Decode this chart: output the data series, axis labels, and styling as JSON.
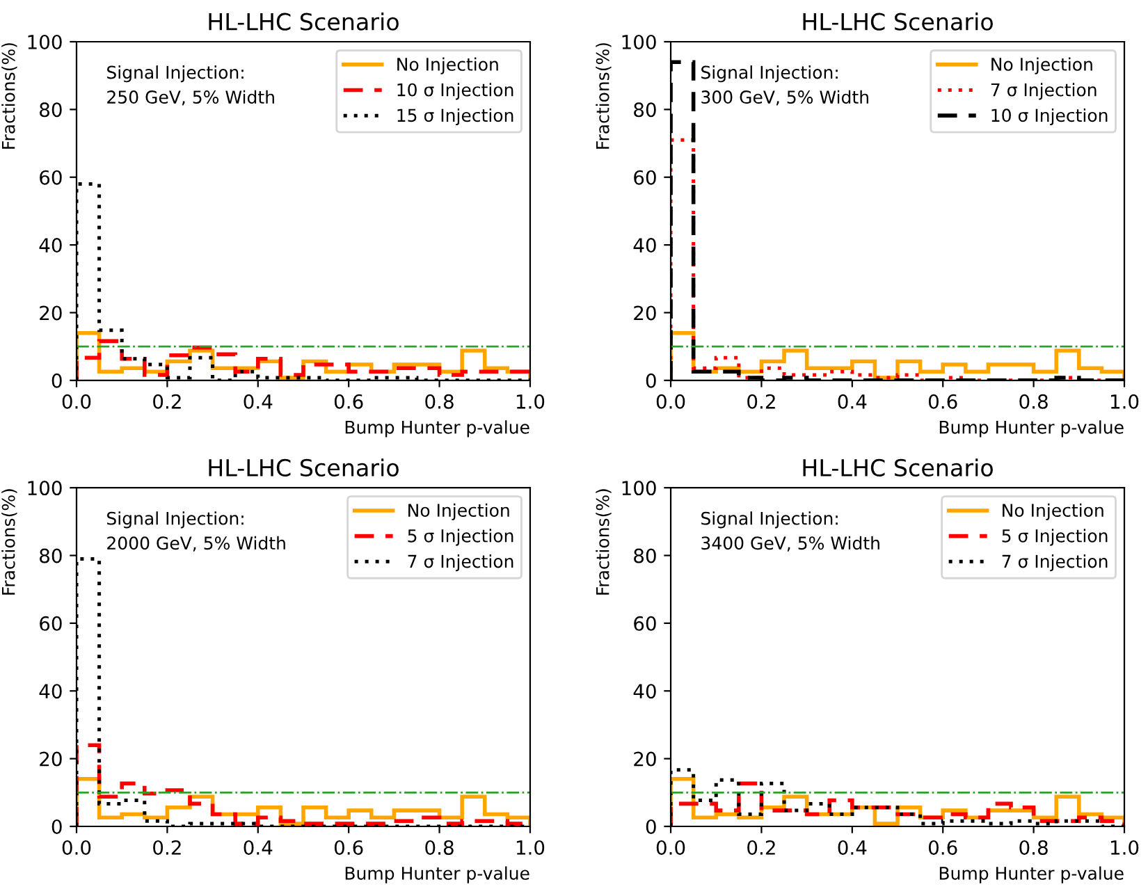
{
  "chart_data": [
    {
      "type": "histogram",
      "title": "HL-LHC Scenario",
      "xlabel": "Bump Hunter p-value",
      "ylabel": "Fractions(%)",
      "annotations": [
        "Signal Injection:\n250 GeV, 5% Width"
      ],
      "bins": [
        0,
        0.05,
        0.1,
        0.15,
        0.2,
        0.25,
        0.3,
        0.35,
        0.4,
        0.45,
        0.5,
        0.55,
        0.6,
        0.65,
        0.7,
        0.75,
        0.8,
        0.85,
        0.9,
        0.95,
        1.0
      ],
      "series": [
        {
          "name": "No Injection",
          "color": "#ffa500",
          "line_style": "solid",
          "values": [
            14,
            2.6,
            3.6,
            2.6,
            5.6,
            8.8,
            3.6,
            3.6,
            5.6,
            0.8,
            5.6,
            2.6,
            4.7,
            2.6,
            4.7,
            4.7,
            2.6,
            8.8,
            3.6,
            2.6
          ]
        },
        {
          "name": "10 σ Injection",
          "color": "#ff0000",
          "line_style": "dashed",
          "values": [
            6.7,
            11.6,
            6.4,
            1.6,
            7.4,
            9.7,
            7.7,
            2.6,
            6.4,
            1.6,
            4.7,
            4.7,
            2.6,
            2.6,
            3.6,
            3.6,
            1.6,
            2.6,
            2.6,
            2.6
          ]
        },
        {
          "name": "15 σ Injection",
          "color": "#000000",
          "line_style": "dotted",
          "values": [
            58,
            14.8,
            6.4,
            4.7,
            0.8,
            6.7,
            0,
            2.6,
            0.8,
            0.8,
            0.8,
            0,
            0,
            0.8,
            0.8,
            0,
            0,
            0,
            0,
            0
          ]
        }
      ],
      "ref_lines": [
        {
          "axis": "y",
          "value": 10,
          "color": "#2ca02c",
          "line_style": "dashdot"
        }
      ],
      "xlim": [
        0,
        1
      ],
      "ylim": [
        0,
        100
      ],
      "xticks": [
        {
          "value": 0,
          "label": "0.0"
        },
        {
          "value": 0.2,
          "label": "0.2"
        },
        {
          "value": 0.4,
          "label": "0.4"
        },
        {
          "value": 0.6,
          "label": "0.6"
        },
        {
          "value": 0.8,
          "label": "0.8"
        },
        {
          "value": 1,
          "label": "1.0"
        }
      ],
      "yticks": [
        0,
        20,
        40,
        60,
        80,
        100
      ],
      "legend": "top right",
      "grid": false
    },
    {
      "type": "histogram",
      "title": "HL-LHC Scenario",
      "xlabel": "Bump Hunter p-value",
      "ylabel": "Fractions(%)",
      "annotations": [
        "Signal Injection:\n300 GeV, 5% Width"
      ],
      "bins": [
        0,
        0.05,
        0.1,
        0.15,
        0.2,
        0.25,
        0.3,
        0.35,
        0.4,
        0.45,
        0.5,
        0.55,
        0.6,
        0.65,
        0.7,
        0.75,
        0.8,
        0.85,
        0.9,
        0.95,
        1.0
      ],
      "series": [
        {
          "name": "No Injection",
          "color": "#ffa500",
          "line_style": "solid",
          "values": [
            14,
            2.6,
            3.6,
            2.6,
            5.6,
            8.8,
            3.6,
            3.6,
            5.6,
            0.8,
            5.6,
            2.6,
            4.7,
            2.6,
            4.7,
            4.7,
            2.6,
            8.8,
            3.6,
            2.6
          ]
        },
        {
          "name": "7 σ Injection",
          "color": "#ff0000",
          "line_style": "dotted",
          "values": [
            71,
            3.6,
            6.7,
            0.8,
            3.6,
            1.6,
            1.6,
            2.6,
            1.6,
            0.8,
            1.6,
            0,
            0.8,
            0,
            0,
            0,
            0,
            0.8,
            0,
            0
          ]
        },
        {
          "name": "10 σ Injection",
          "color": "#000000",
          "line_style": "dashed",
          "values": [
            94,
            2.6,
            2.6,
            0.8,
            0,
            0.8,
            0,
            0,
            0,
            0,
            0,
            0,
            0,
            0,
            0,
            0,
            0,
            0.8,
            0,
            0
          ]
        }
      ],
      "ref_lines": [
        {
          "axis": "y",
          "value": 10,
          "color": "#2ca02c",
          "line_style": "dashdot"
        }
      ],
      "xlim": [
        0,
        1
      ],
      "ylim": [
        0,
        100
      ],
      "xticks": [
        {
          "value": 0,
          "label": "0.0"
        },
        {
          "value": 0.2,
          "label": "0.2"
        },
        {
          "value": 0.4,
          "label": "0.4"
        },
        {
          "value": 0.6,
          "label": "0.6"
        },
        {
          "value": 0.8,
          "label": "0.8"
        },
        {
          "value": 1,
          "label": "1.0"
        }
      ],
      "yticks": [
        0,
        20,
        40,
        60,
        80,
        100
      ],
      "legend": "top right",
      "grid": false
    },
    {
      "type": "histogram",
      "title": "HL-LHC Scenario",
      "xlabel": "Bump Hunter p-value",
      "ylabel": "Fractions(%)",
      "annotations": [
        "Signal Injection:\n2000 GeV, 5% Width"
      ],
      "bins": [
        0,
        0.05,
        0.1,
        0.15,
        0.2,
        0.25,
        0.3,
        0.35,
        0.4,
        0.45,
        0.5,
        0.55,
        0.6,
        0.65,
        0.7,
        0.75,
        0.8,
        0.85,
        0.9,
        0.95,
        1.0
      ],
      "series": [
        {
          "name": "No Injection",
          "color": "#ffa500",
          "line_style": "solid",
          "values": [
            14,
            2.6,
            3.6,
            2.6,
            5.6,
            8.8,
            3.6,
            3.6,
            5.6,
            0.8,
            5.6,
            2.6,
            4.7,
            2.6,
            4.7,
            4.7,
            2.6,
            8.8,
            3.6,
            2.6
          ]
        },
        {
          "name": "5 σ Injection",
          "color": "#ff0000",
          "line_style": "dashed",
          "values": [
            24,
            8.8,
            12.7,
            9.7,
            10.7,
            6.7,
            3.6,
            0.8,
            2.6,
            1.6,
            0.8,
            0.8,
            0.8,
            0.8,
            1.6,
            2.6,
            0.8,
            1.6,
            1.6,
            0.8
          ]
        },
        {
          "name": "7 σ Injection",
          "color": "#000000",
          "line_style": "dotted",
          "values": [
            79,
            6.7,
            7.7,
            1.6,
            0,
            0.8,
            0.8,
            0.8,
            0,
            0,
            0,
            0,
            0,
            0,
            0,
            0,
            0,
            0,
            0,
            0
          ]
        }
      ],
      "ref_lines": [
        {
          "axis": "y",
          "value": 10,
          "color": "#2ca02c",
          "line_style": "dashdot"
        }
      ],
      "xlim": [
        0,
        1
      ],
      "ylim": [
        0,
        100
      ],
      "xticks": [
        {
          "value": 0,
          "label": "0.0"
        },
        {
          "value": 0.2,
          "label": "0.2"
        },
        {
          "value": 0.4,
          "label": "0.4"
        },
        {
          "value": 0.6,
          "label": "0.6"
        },
        {
          "value": 0.8,
          "label": "0.8"
        },
        {
          "value": 1,
          "label": "1.0"
        }
      ],
      "yticks": [
        0,
        20,
        40,
        60,
        80,
        100
      ],
      "legend": "top right",
      "grid": false
    },
    {
      "type": "histogram",
      "title": "HL-LHC Scenario",
      "xlabel": "Bump Hunter p-value",
      "ylabel": "Fractions(%)",
      "annotations": [
        "Signal Injection:\n3400 GeV, 5% Width"
      ],
      "bins": [
        0,
        0.05,
        0.1,
        0.15,
        0.2,
        0.25,
        0.3,
        0.35,
        0.4,
        0.45,
        0.5,
        0.55,
        0.6,
        0.65,
        0.7,
        0.75,
        0.8,
        0.85,
        0.9,
        0.95,
        1.0
      ],
      "series": [
        {
          "name": "No Injection",
          "color": "#ffa500",
          "line_style": "solid",
          "values": [
            14,
            2.6,
            3.6,
            2.6,
            5.6,
            8.8,
            3.6,
            3.6,
            5.6,
            0.8,
            5.6,
            2.6,
            4.7,
            2.6,
            4.7,
            4.7,
            2.6,
            8.8,
            3.6,
            2.6
          ]
        },
        {
          "name": "5 σ Injection",
          "color": "#ff0000",
          "line_style": "dashed",
          "values": [
            6.7,
            6.7,
            4.7,
            12.7,
            4.7,
            4.7,
            3.6,
            7.7,
            5.6,
            5.6,
            3.6,
            2.6,
            3.6,
            2.6,
            6.7,
            5.6,
            1.6,
            1.6,
            2.6,
            1.6
          ]
        },
        {
          "name": "7 σ Injection",
          "color": "#000000",
          "line_style": "dotted",
          "values": [
            16.7,
            7.7,
            13.7,
            3.6,
            12.7,
            4.7,
            6.7,
            3.6,
            5.6,
            5.6,
            3.6,
            0.8,
            1.6,
            1.6,
            0.8,
            1.6,
            0.8,
            1.6,
            1.6,
            0
          ]
        }
      ],
      "ref_lines": [
        {
          "axis": "y",
          "value": 10,
          "color": "#2ca02c",
          "line_style": "dashdot"
        }
      ],
      "xlim": [
        0,
        1
      ],
      "ylim": [
        0,
        100
      ],
      "xticks": [
        {
          "value": 0,
          "label": "0.0"
        },
        {
          "value": 0.2,
          "label": "0.2"
        },
        {
          "value": 0.4,
          "label": "0.4"
        },
        {
          "value": 0.6,
          "label": "0.6"
        },
        {
          "value": 0.8,
          "label": "0.8"
        },
        {
          "value": 1,
          "label": "1.0"
        }
      ],
      "yticks": [
        0,
        20,
        40,
        60,
        80,
        100
      ],
      "legend": "top right",
      "grid": false
    }
  ]
}
